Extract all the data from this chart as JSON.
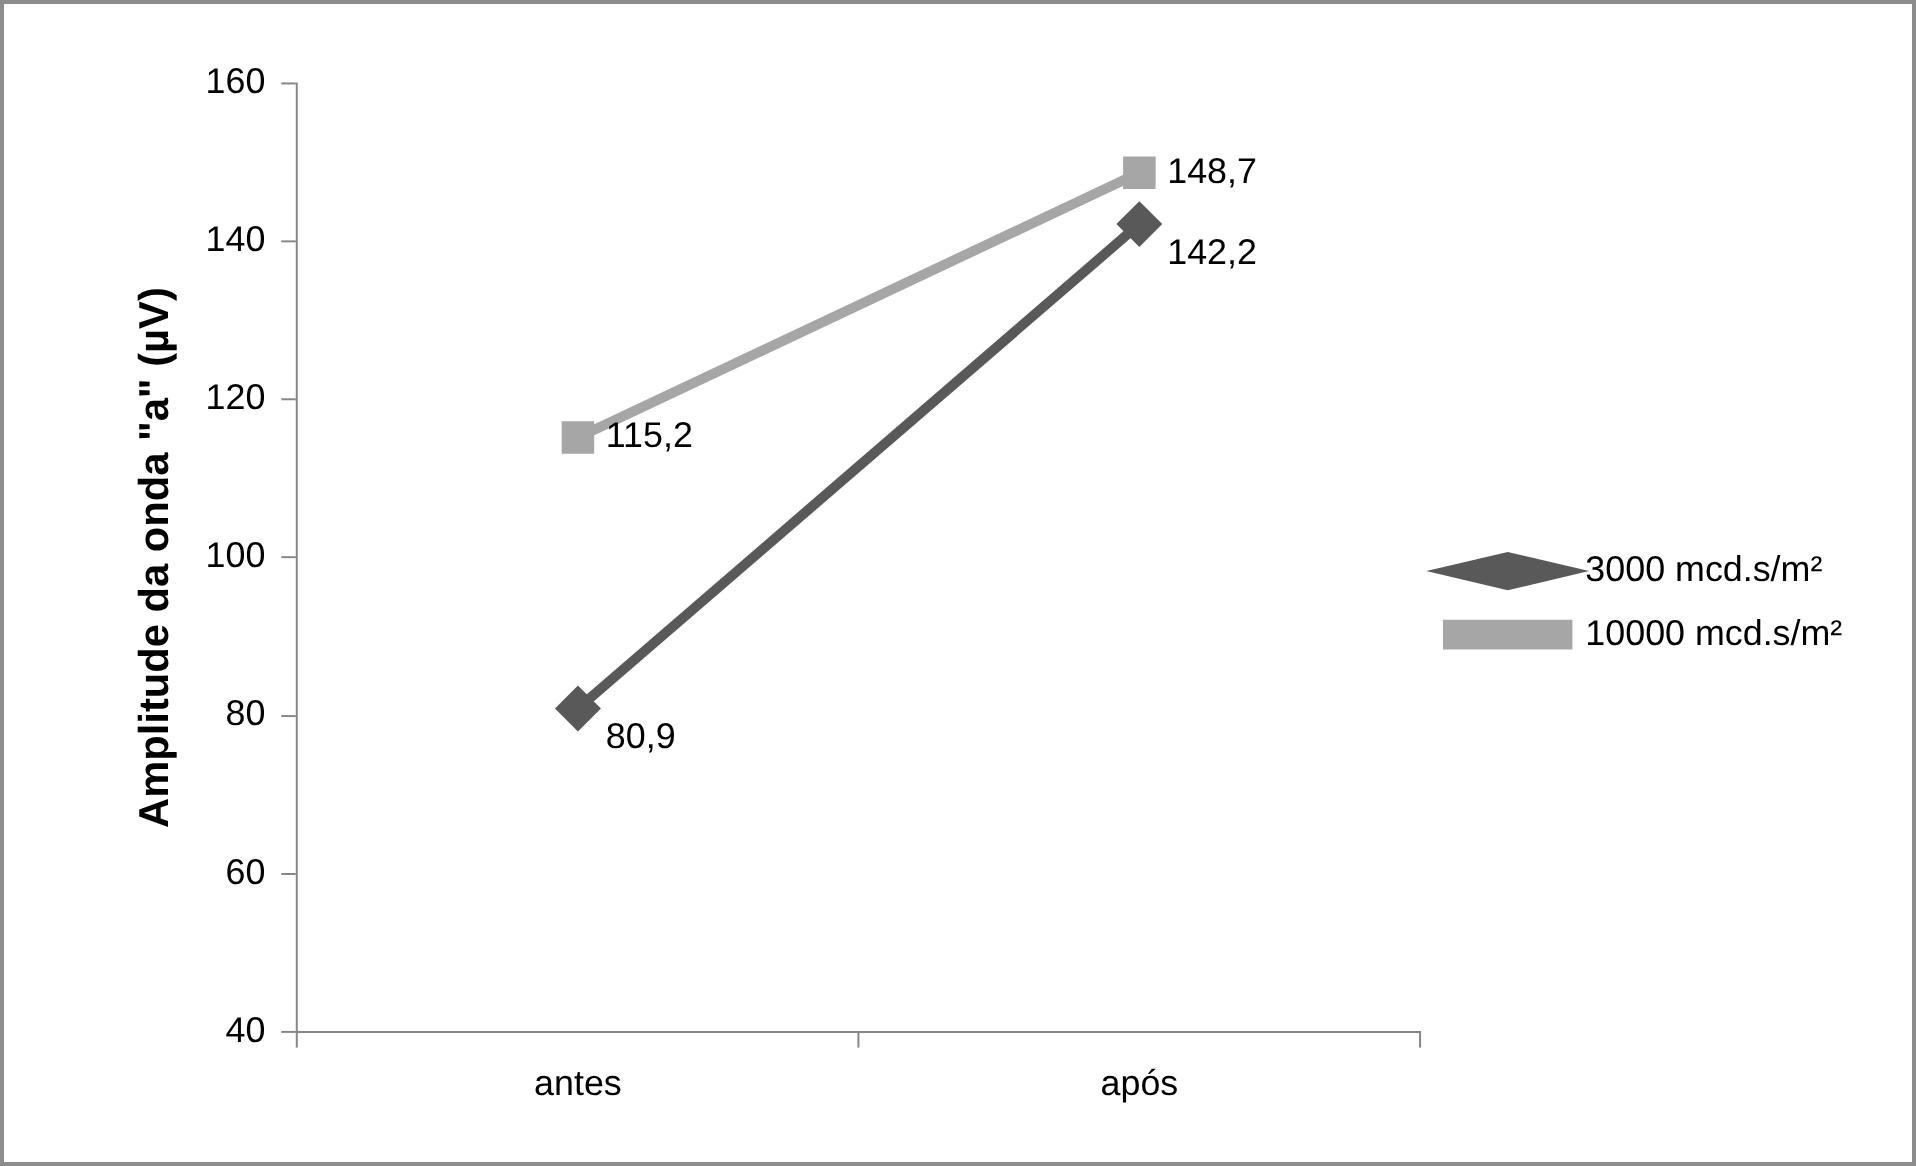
{
  "chart_data": {
    "type": "line",
    "ylabel": "Amplitude da onda \"a\" (µV)",
    "categories": [
      "antes",
      "após"
    ],
    "series": [
      {
        "name": "3000 mcd.s/m²",
        "color": "#595959",
        "marker": "diamond",
        "values": [
          80.9,
          142.2
        ],
        "value_labels": [
          "80,9",
          "142,2"
        ]
      },
      {
        "name": "10000 mcd.s/m²",
        "color": "#a6a6a6",
        "marker": "square",
        "values": [
          115.2,
          148.7
        ],
        "value_labels": [
          "115,2",
          "148,7"
        ]
      }
    ],
    "ylim": [
      40,
      160
    ],
    "yticks": [
      40,
      60,
      80,
      100,
      120,
      140,
      160
    ],
    "grid": false,
    "legend": "right",
    "line_style": "solid"
  }
}
